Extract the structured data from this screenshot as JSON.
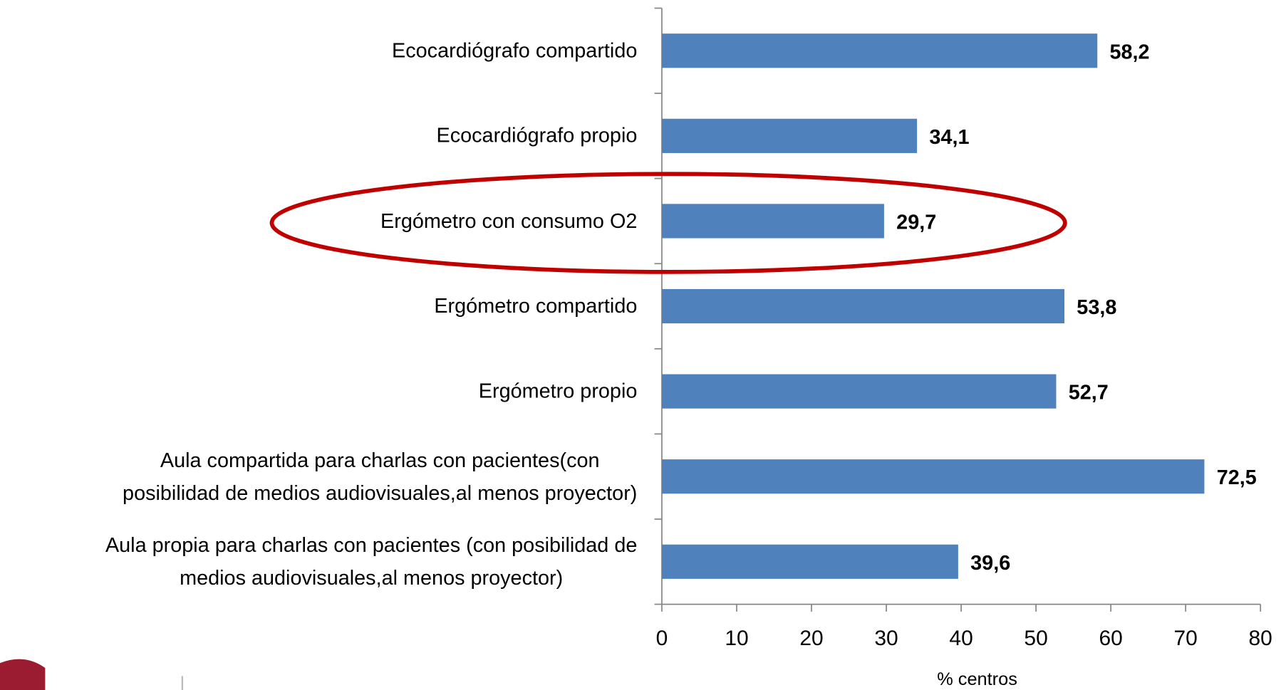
{
  "chart_data": {
    "type": "barh",
    "categories": [
      "Ecocardiógrafo compartido",
      "Ecocardiógrafo propio",
      "Ergómetro con consumo O2",
      "Ergómetro compartido",
      "Ergómetro propio",
      "Aula compartida para charlas con pacientes(con\nposibilidad de medios audiovisuales,al menos proyector)",
      "Aula propia para charlas con pacientes (con posibilidad de\nmedios audiovisuales,al menos proyector)"
    ],
    "values": [
      58.2,
      34.1,
      29.7,
      53.8,
      52.7,
      72.5,
      39.6
    ],
    "value_labels": [
      "58,2",
      "34,1",
      "29,7",
      "53,8",
      "52,7",
      "72,5",
      "39,6"
    ],
    "color": "#4f81bd",
    "xlabel": "%  centros",
    "xlim": [
      0,
      80
    ],
    "xticks": [
      0,
      10,
      20,
      30,
      40,
      50,
      60,
      70,
      80
    ]
  }
}
